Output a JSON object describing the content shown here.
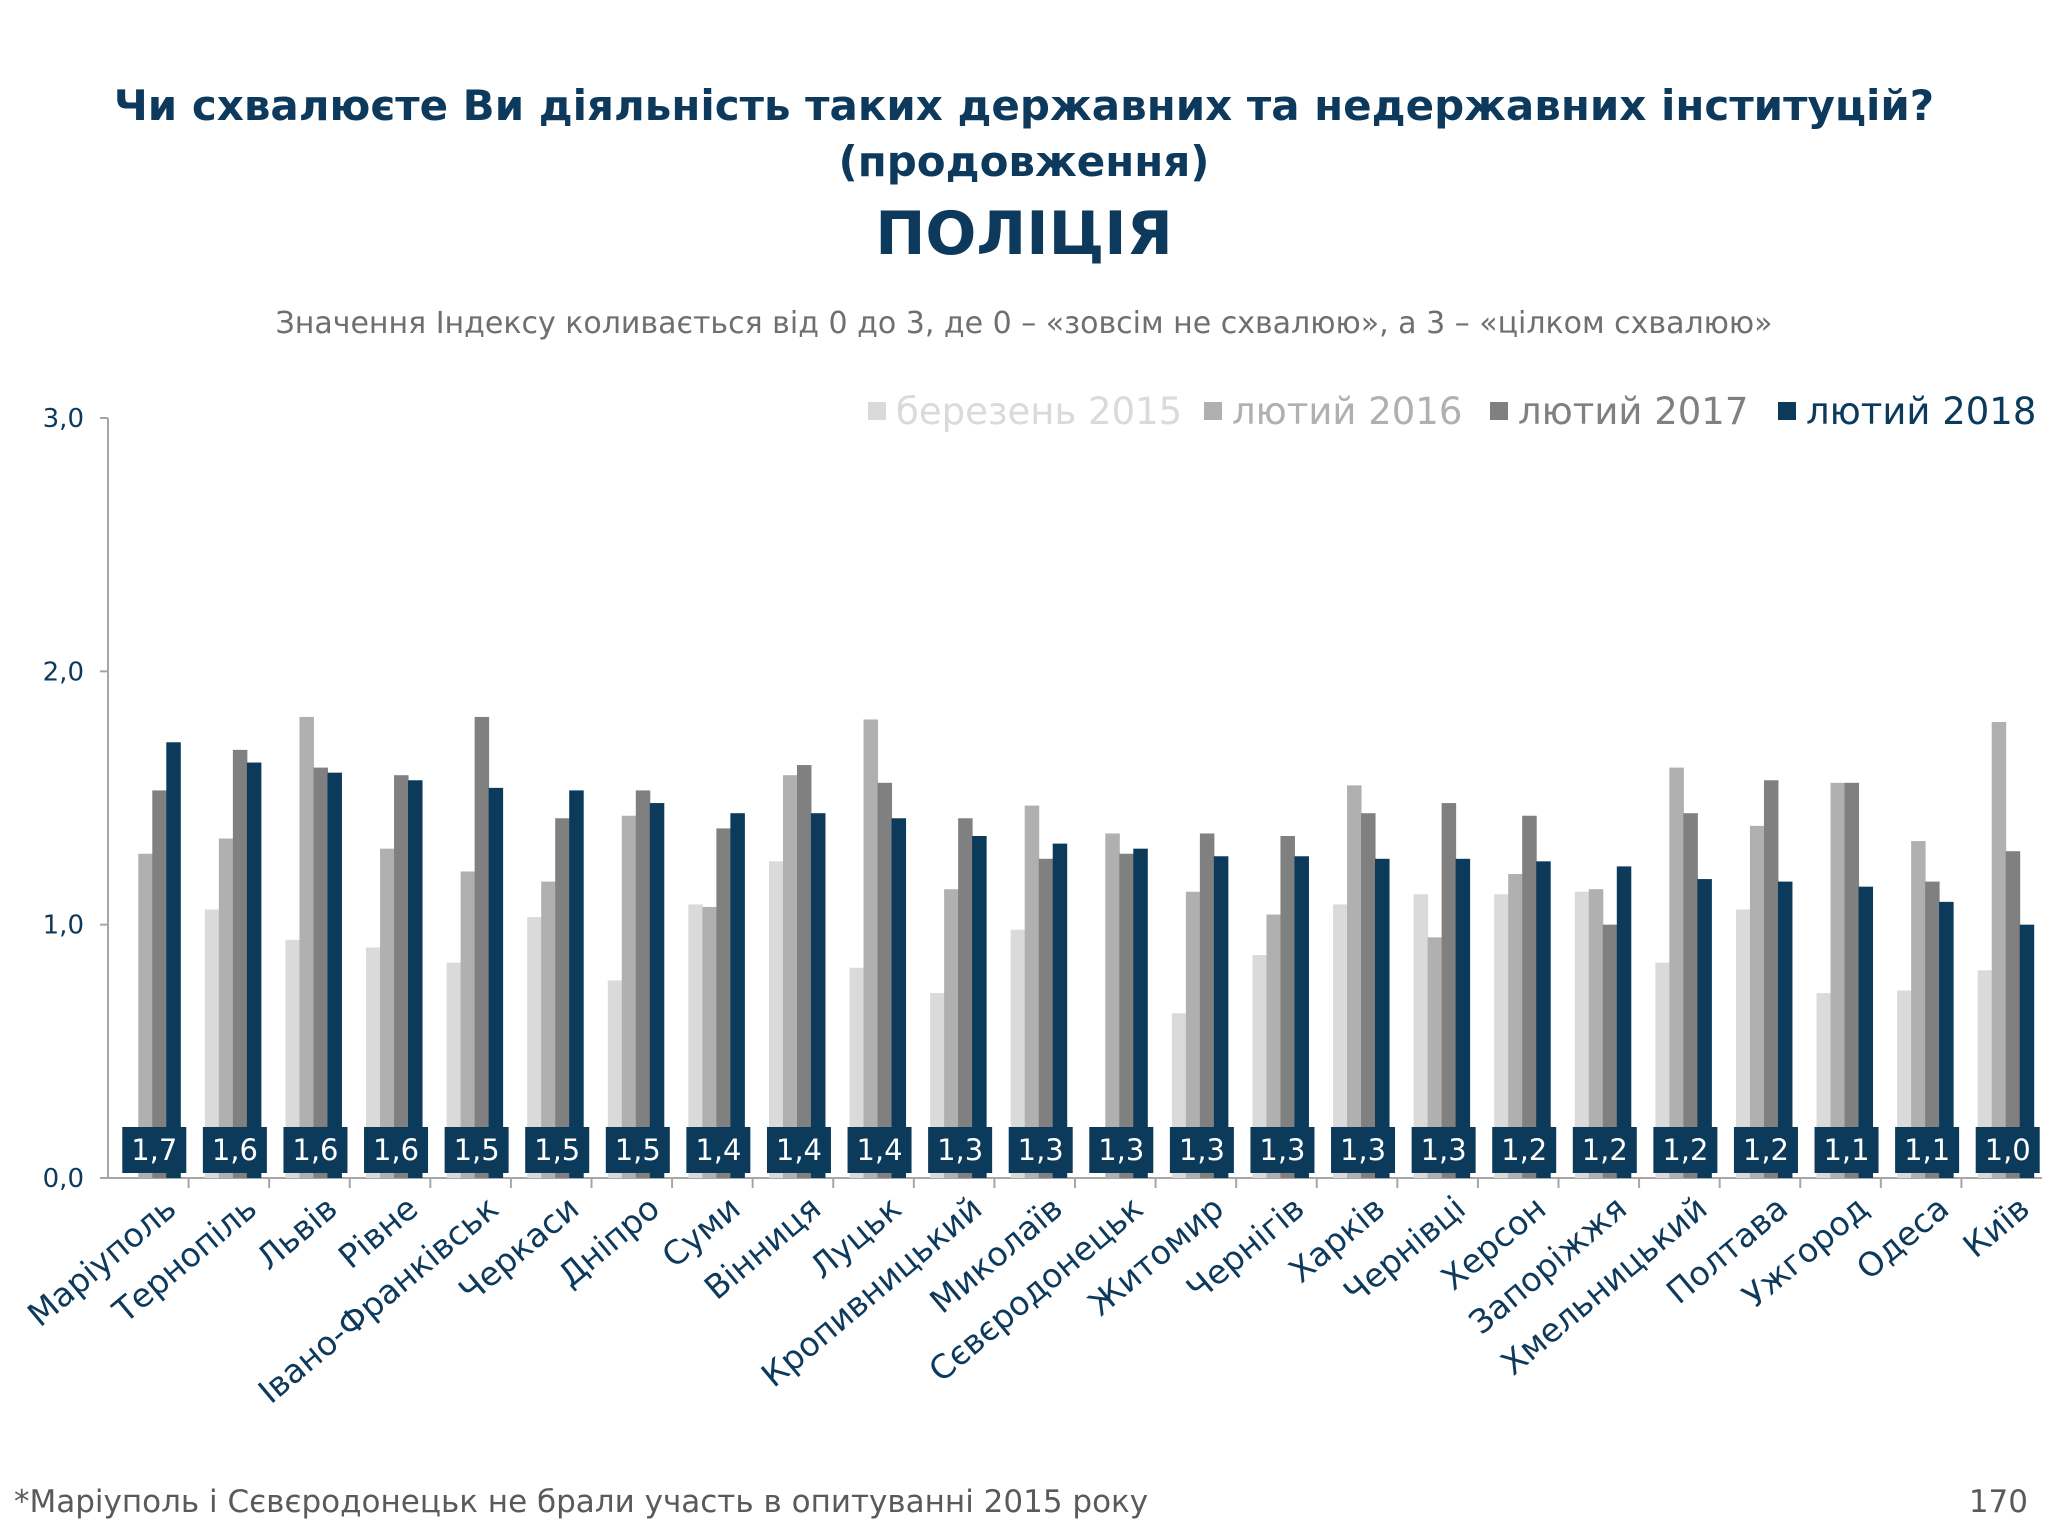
{
  "title": {
    "line1": "Чи схвалюєте Ви діяльність таких державних та недержавних інституцій?",
    "line2": "(продовження)",
    "line3": "ПОЛІЦІЯ"
  },
  "subtitle": "Значення Індексу коливається від 0 до 3, де 0 – «зовсім не схвалюю», а 3 – «цілком схвалюю»",
  "footnote": "*Маріуполь і Сєвєродонецьк не брали участь в опитуванні 2015 року",
  "page_number": "170",
  "chart_data": {
    "type": "bar",
    "ylim": [
      0,
      3
    ],
    "yticks": [
      "0,0",
      "1,0",
      "2,0",
      "3,0"
    ],
    "legend_position": "top-right",
    "categories": [
      "Маріуполь",
      "Тернопіль",
      "Львів",
      "Рівне",
      "Івано-Франківськ",
      "Черкаси",
      "Дніпро",
      "Суми",
      "Вінниця",
      "Луцьк",
      "Кропивницький",
      "Миколаїв",
      "Сєвєродонецьк",
      "Житомир",
      "Чернігів",
      "Харків",
      "Чернівці",
      "Херсон",
      "Запоріжжя",
      "Хмельницький",
      "Полтава",
      "Ужгород",
      "Одеса",
      "Київ"
    ],
    "series": [
      {
        "name": "березень 2015",
        "color": "#dadadb",
        "values": [
          null,
          1.06,
          0.94,
          0.91,
          0.85,
          1.03,
          0.78,
          1.08,
          1.25,
          0.83,
          0.73,
          0.98,
          null,
          0.65,
          0.88,
          1.08,
          1.12,
          1.12,
          1.13,
          0.85,
          1.06,
          0.73,
          0.74,
          0.82
        ]
      },
      {
        "name": "лютий 2016",
        "color": "#b0b0b1",
        "values": [
          1.28,
          1.34,
          1.82,
          1.3,
          1.21,
          1.17,
          1.43,
          1.07,
          1.59,
          1.81,
          1.14,
          1.47,
          1.36,
          1.13,
          1.04,
          1.55,
          0.95,
          1.2,
          1.14,
          1.62,
          1.39,
          1.56,
          1.33,
          1.8
        ]
      },
      {
        "name": "лютий 2017",
        "color": "#808080",
        "values": [
          1.53,
          1.69,
          1.62,
          1.59,
          1.82,
          1.42,
          1.53,
          1.38,
          1.63,
          1.56,
          1.42,
          1.26,
          1.28,
          1.36,
          1.35,
          1.44,
          1.48,
          1.43,
          1.0,
          1.44,
          1.57,
          1.56,
          1.17,
          1.29
        ]
      },
      {
        "name": "лютий 2018",
        "color": "#0c3a5b",
        "values": [
          1.72,
          1.64,
          1.6,
          1.57,
          1.54,
          1.53,
          1.48,
          1.44,
          1.44,
          1.42,
          1.35,
          1.32,
          1.3,
          1.27,
          1.27,
          1.26,
          1.26,
          1.25,
          1.23,
          1.18,
          1.17,
          1.15,
          1.09,
          1.0
        ]
      }
    ],
    "data_labels": [
      "1,7",
      "1,6",
      "1,6",
      "1,6",
      "1,5",
      "1,5",
      "1,5",
      "1,4",
      "1,4",
      "1,4",
      "1,3",
      "1,3",
      "1,3",
      "1,3",
      "1,3",
      "1,3",
      "1,3",
      "1,2",
      "1,2",
      "1,2",
      "1,2",
      "1,1",
      "1,1",
      "1,0"
    ]
  }
}
